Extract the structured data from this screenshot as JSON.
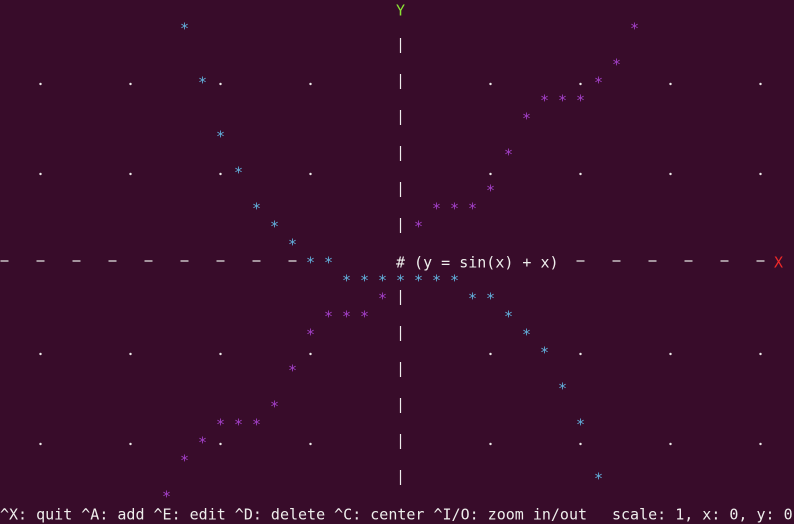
{
  "plot": {
    "y_axis_label": "Y",
    "x_axis_label": "X",
    "function_label": "# (y = sin(x) + x)",
    "marker": "*"
  },
  "status_bar": {
    "shortcuts": "^X: quit ^A: add ^E: edit ^D: delete ^C: center ^I/O: zoom in/out",
    "position": "scale: 1, x: 0, y: 0"
  }
}
